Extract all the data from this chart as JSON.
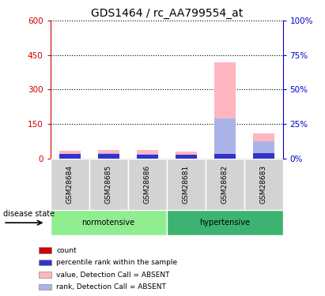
{
  "title": "GDS1464 / rc_AA799554_at",
  "samples": [
    "GSM28684",
    "GSM28685",
    "GSM28686",
    "GSM28681",
    "GSM28682",
    "GSM28683"
  ],
  "left_ylim": [
    0,
    600
  ],
  "left_yticks": [
    0,
    150,
    300,
    450,
    600
  ],
  "right_ylim": [
    0,
    100
  ],
  "right_yticks": [
    0,
    25,
    50,
    75,
    100
  ],
  "bar_data": {
    "value_absent": [
      32,
      38,
      35,
      28,
      420,
      110
    ],
    "rank_absent": [
      20,
      22,
      20,
      17,
      175,
      75
    ],
    "count": [
      8,
      8,
      5,
      7,
      8,
      9
    ],
    "percentile_rank": [
      18,
      20,
      17,
      15,
      20,
      23
    ]
  },
  "colors": {
    "count": "#cc0000",
    "percentile_rank": "#3333cc",
    "value_absent": "#ffb6c1",
    "rank_absent": "#aab4e8"
  },
  "bar_width": 0.55,
  "normotensive_color": "#90EE90",
  "hypertensive_color": "#3CB371",
  "sample_box_color": "#d3d3d3",
  "legend_labels": [
    "count",
    "percentile rank within the sample",
    "value, Detection Call = ABSENT",
    "rank, Detection Call = ABSENT"
  ],
  "legend_colors": [
    "#cc0000",
    "#3333cc",
    "#ffb6c1",
    "#aab4e8"
  ],
  "title_fontsize": 10,
  "tick_fontsize": 7.5,
  "left_axis_color": "#cc0000",
  "right_axis_color": "#0000cc"
}
